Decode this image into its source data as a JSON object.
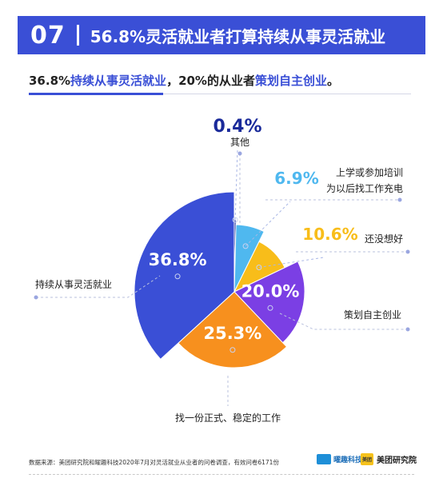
{
  "header": {
    "number": "07",
    "title": "56.8%灵活就业者打算持续从事灵活就业"
  },
  "subtitle": {
    "part1": "36.8%",
    "part2": "持续从事灵活就业",
    "part3": "，20%的从业者",
    "part4": "策划自主创业",
    "part5": "。"
  },
  "chart_data": {
    "type": "pie",
    "slices": [
      {
        "label": "其他",
        "value": 0.4,
        "display": "0.4%",
        "color": "#1a2a9a"
      },
      {
        "label": "上学或参加培训为以后找工作充电",
        "value": 6.9,
        "display": "6.9%",
        "color": "#4fb8ef"
      },
      {
        "label": "还没想好",
        "value": 10.6,
        "display": "10.6%",
        "color": "#f8bd1a"
      },
      {
        "label": "策划自主创业",
        "value": 20.0,
        "display": "20.0%",
        "color": "#7b3fe4"
      },
      {
        "label": "找一份正式、稳定的工作",
        "value": 25.3,
        "display": "25.3%",
        "color": "#f7901e"
      },
      {
        "label": "持续从事灵活就业",
        "value": 36.8,
        "display": "36.8%",
        "color": "#3a4fd6"
      }
    ],
    "label_lines": {
      "training_line1": "上学或参加培训",
      "training_line2": "为以后找工作充电"
    }
  },
  "footer": {
    "note": "数据来源：美团研究院和曜趣科技2020年7月对灵活就业从业者的问卷调查，有效问卷6171份",
    "brand_a": "曜趣科技",
    "brand_b": "美团研究院",
    "brand_b_badge": "美团"
  }
}
